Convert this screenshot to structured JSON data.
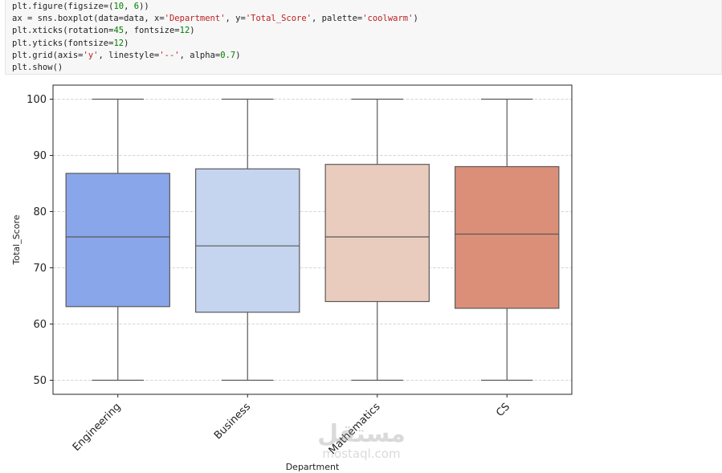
{
  "code": {
    "lines": [
      [
        {
          "t": "plt.figure(figsize=(",
          "c": "fn"
        },
        {
          "t": "10",
          "c": "num"
        },
        {
          "t": ", ",
          "c": "fn"
        },
        {
          "t": "6",
          "c": "num"
        },
        {
          "t": "))",
          "c": "fn"
        }
      ],
      [
        {
          "t": "ax = sns.boxplot(data=data, x=",
          "c": "fn"
        },
        {
          "t": "'Department'",
          "c": "str"
        },
        {
          "t": ", y=",
          "c": "fn"
        },
        {
          "t": "'Total_Score'",
          "c": "str"
        },
        {
          "t": ", palette=",
          "c": "fn"
        },
        {
          "t": "'coolwarm'",
          "c": "str"
        },
        {
          "t": ")",
          "c": "fn"
        }
      ],
      [
        {
          "t": "plt.xticks(rotation=",
          "c": "fn"
        },
        {
          "t": "45",
          "c": "num"
        },
        {
          "t": ", fontsize=",
          "c": "fn"
        },
        {
          "t": "12",
          "c": "num"
        },
        {
          "t": ")",
          "c": "fn"
        }
      ],
      [
        {
          "t": "plt.yticks(fontsize=",
          "c": "fn"
        },
        {
          "t": "12",
          "c": "num"
        },
        {
          "t": ")",
          "c": "fn"
        }
      ],
      [
        {
          "t": "plt.grid(axis=",
          "c": "fn"
        },
        {
          "t": "'y'",
          "c": "str"
        },
        {
          "t": ", linestyle=",
          "c": "fn"
        },
        {
          "t": "'--'",
          "c": "str"
        },
        {
          "t": ", alpha=",
          "c": "fn"
        },
        {
          "t": "0.7",
          "c": "num"
        },
        {
          "t": ")",
          "c": "fn"
        }
      ],
      [
        {
          "t": "plt.show()",
          "c": "fn"
        }
      ]
    ]
  },
  "chart_data": {
    "type": "box",
    "xlabel": "Department",
    "ylabel": "Total_Score",
    "ylim": [
      47.5,
      102.5
    ],
    "yticks": [
      50,
      60,
      70,
      80,
      90,
      100
    ],
    "grid": "y",
    "categories": [
      "Engineering",
      "Business",
      "Mathematics",
      "CS"
    ],
    "boxes": [
      {
        "category": "Engineering",
        "whisker_low": 50,
        "q1": 63.1,
        "median": 75.5,
        "q3": 86.8,
        "whisker_high": 100,
        "color": "#8aa6ea"
      },
      {
        "category": "Business",
        "whisker_low": 50,
        "q1": 62.1,
        "median": 73.9,
        "q3": 87.6,
        "whisker_high": 100,
        "color": "#c5d4ef"
      },
      {
        "category": "Mathematics",
        "whisker_low": 50,
        "q1": 64.0,
        "median": 75.5,
        "q3": 88.4,
        "whisker_high": 100,
        "color": "#eaccbf"
      },
      {
        "category": "CS",
        "whisker_low": 50,
        "q1": 62.8,
        "median": 76.0,
        "q3": 88.0,
        "whisker_high": 100,
        "color": "#dc8f78"
      }
    ]
  },
  "watermark": {
    "logo": "مستقل",
    "site": "mostaql.com"
  }
}
